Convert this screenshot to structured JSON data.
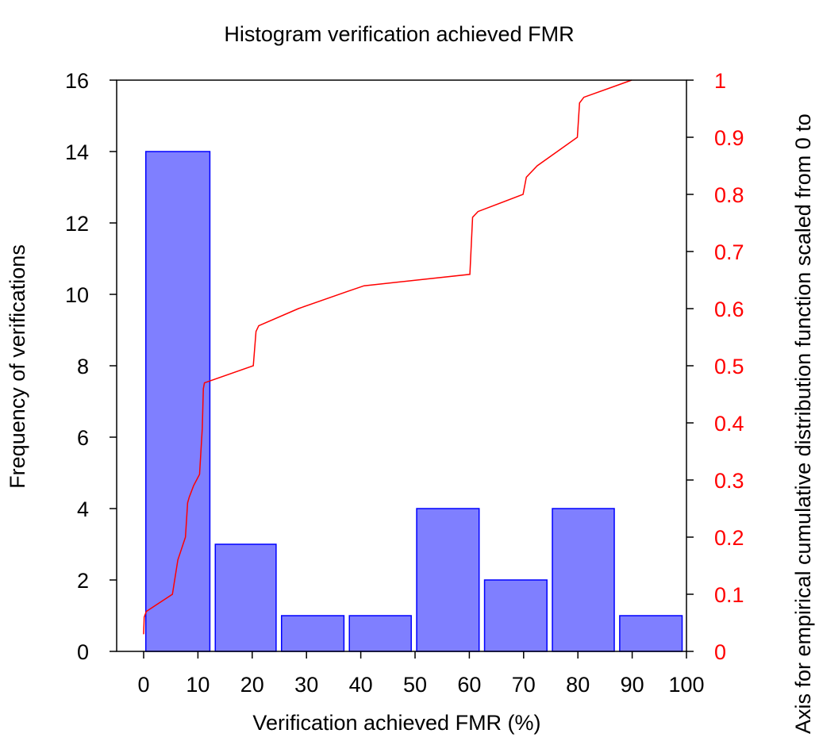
{
  "chart_data": {
    "type": "bar",
    "title": "Histogram verification achieved FMR",
    "xlabel": "Verification achieved FMR (%)",
    "ylabel": "Frequency of verifications",
    "y2label": "Axis for empirical cumulative distribution function scaled from 0 to",
    "xlim": [
      0,
      100
    ],
    "ylim": [
      0,
      16
    ],
    "y2lim": [
      0,
      1
    ],
    "x_ticks": [
      "0",
      "10",
      "20",
      "30",
      "40",
      "50",
      "60",
      "70",
      "80",
      "90",
      "100"
    ],
    "y_ticks": [
      "0",
      "2",
      "4",
      "6",
      "8",
      "10",
      "12",
      "14",
      "16"
    ],
    "y2_ticks": [
      "0",
      "0.1",
      "0.2",
      "0.3",
      "0.4",
      "0.5",
      "0.6",
      "0.7",
      "0.8",
      "0.9",
      "1"
    ],
    "bins": [
      {
        "x0": 0.4,
        "x1": 12.2,
        "value": 14
      },
      {
        "x0": 13.2,
        "x1": 24.4,
        "value": 3
      },
      {
        "x0": 25.4,
        "x1": 36.9,
        "value": 1
      },
      {
        "x0": 37.9,
        "x1": 49.3,
        "value": 1
      },
      {
        "x0": 50.3,
        "x1": 61.8,
        "value": 4
      },
      {
        "x0": 62.8,
        "x1": 74.3,
        "value": 2
      },
      {
        "x0": 75.3,
        "x1": 86.7,
        "value": 4
      },
      {
        "x0": 87.7,
        "x1": 99.2,
        "value": 1
      }
    ],
    "ecdf": {
      "color": "#ff0000",
      "points": [
        [
          0,
          0.03
        ],
        [
          0.1,
          0.06
        ],
        [
          0.5,
          0.07
        ],
        [
          5.3,
          0.1
        ],
        [
          6.3,
          0.16
        ],
        [
          7.7,
          0.2
        ],
        [
          8.1,
          0.26
        ],
        [
          8.4,
          0.27
        ],
        [
          9.2,
          0.29
        ],
        [
          10.3,
          0.31
        ],
        [
          10.8,
          0.39
        ],
        [
          11.0,
          0.46
        ],
        [
          11.2,
          0.47
        ],
        [
          20.2,
          0.5
        ],
        [
          20.7,
          0.56
        ],
        [
          21.2,
          0.57
        ],
        [
          28.5,
          0.6
        ],
        [
          37.5,
          0.63
        ],
        [
          40.6,
          0.64
        ],
        [
          60.1,
          0.66
        ],
        [
          60.6,
          0.76
        ],
        [
          61.6,
          0.77
        ],
        [
          69.9,
          0.8
        ],
        [
          70.5,
          0.83
        ],
        [
          72.5,
          0.85
        ],
        [
          79.9,
          0.9
        ],
        [
          80.3,
          0.96
        ],
        [
          81.1,
          0.97
        ],
        [
          89.9,
          1.0
        ]
      ]
    },
    "bar_color": "#7f7fff",
    "bar_edge_color": "#0000ff",
    "y2_color": "#ff0000",
    "grid": false,
    "legend": "none"
  }
}
